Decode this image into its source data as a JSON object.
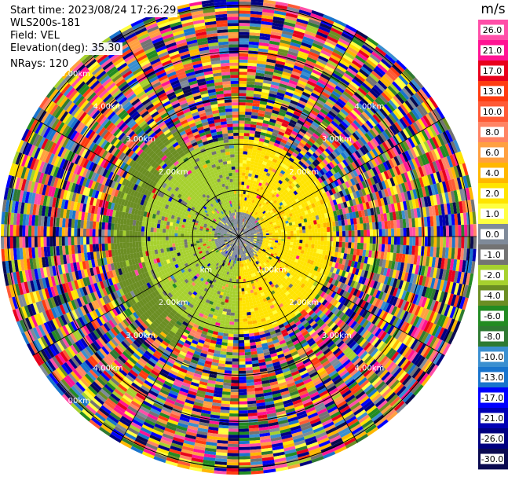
{
  "header": {
    "start_time": "Start time: 2023/08/24 17:26:29",
    "instrument": "WLS200s-181",
    "field": "Field: VEL",
    "elevation": "Elevation(deg): 35.30",
    "nrays": "NRays: 120"
  },
  "chart_data": {
    "type": "heatmap",
    "projection": "polar-ppi",
    "field": "VEL",
    "units": "m/s",
    "nrays": 120,
    "range_rings_km": [
      1.0,
      2.0,
      3.0,
      4.0,
      5.0
    ],
    "ring_label_suffix": "km",
    "ring_labels": [
      "1.00km",
      "2.00km",
      "3.00km",
      "4.00km",
      "5.00km"
    ],
    "visible_ring_labels": [
      {
        "ring": 1.0,
        "quadrant": "lower-left",
        "text": "km"
      },
      {
        "ring": 1.0,
        "quadrant": "lower-right",
        "text": "1.00km"
      },
      {
        "ring": 2.0,
        "quadrant": "upper-left",
        "text": "2.00km"
      },
      {
        "ring": 2.0,
        "quadrant": "upper-right",
        "text": "2.00km"
      },
      {
        "ring": 2.0,
        "quadrant": "lower-left",
        "text": "2.00km"
      },
      {
        "ring": 2.0,
        "quadrant": "lower-right",
        "text": "2.00km"
      },
      {
        "ring": 3.0,
        "quadrant": "upper-left",
        "text": "3.00km"
      },
      {
        "ring": 3.0,
        "quadrant": "upper-right",
        "text": "3.00km"
      },
      {
        "ring": 3.0,
        "quadrant": "lower-left",
        "text": "3.00km"
      },
      {
        "ring": 3.0,
        "quadrant": "lower-right",
        "text": "3.00km"
      },
      {
        "ring": 4.0,
        "quadrant": "upper-left",
        "text": "4.00km"
      },
      {
        "ring": 4.0,
        "quadrant": "upper-right",
        "text": "4.00km"
      },
      {
        "ring": 4.0,
        "quadrant": "lower-left",
        "text": "4.00km"
      },
      {
        "ring": 4.0,
        "quadrant": "lower-right",
        "text": "4.00km"
      },
      {
        "ring": 5.0,
        "quadrant": "upper-left",
        "text": "5.00km"
      },
      {
        "ring": 5.0,
        "quadrant": "lower-left",
        "text": "5.00km"
      }
    ],
    "max_range_km": 5.15,
    "regions": [
      {
        "name": "near-range",
        "range_km": [
          0,
          0.5
        ],
        "value": 0.0
      },
      {
        "name": "north-sector",
        "range_km": [
          0.5,
          2.1
        ],
        "azimuth_deg": [
          270,
          450
        ],
        "value": 2.0
      },
      {
        "name": "south-sector",
        "range_km": [
          0.5,
          2.1
        ],
        "azimuth_deg": [
          90,
          270
        ],
        "value": -2.0
      },
      {
        "name": "south-outer",
        "range_km": [
          1.5,
          2.8
        ],
        "azimuth_deg": [
          120,
          240
        ],
        "value": -4.0
      },
      {
        "name": "far-range",
        "range_km": [
          2.1,
          5.15
        ],
        "value": "noise"
      }
    ],
    "colorbar": {
      "label": "m/s",
      "ticks": [
        26.0,
        21.0,
        17.0,
        13.0,
        10.0,
        8.0,
        6.0,
        4.0,
        2.0,
        1.0,
        0.0,
        -1.0,
        -2.0,
        -4.0,
        -6.0,
        -8.0,
        -10.0,
        -13.0,
        -17.0,
        -21.0,
        -26.0,
        -30.0
      ],
      "tick_labels": [
        "26.0",
        "21.0",
        "17.0",
        "13.0",
        "10.0",
        "8.0",
        "6.0",
        "4.0",
        "2.0",
        "1.0",
        "0.0",
        "-1.0",
        "-2.0",
        "-4.0",
        "-6.0",
        "-8.0",
        "-10.0",
        "-13.0",
        "-17.0",
        "-21.0",
        "-26.0",
        "-30.0"
      ],
      "colors": [
        "#ff4fa8",
        "#ff1493",
        "#e8001c",
        "#ff3b10",
        "#ff5a36",
        "#ff8464",
        "#ffa040",
        "#ffb700",
        "#ffe400",
        "#ffff40",
        "#7f8a99",
        "#737373",
        "#a6d12e",
        "#6b8e23",
        "#228b22",
        "#2e7a32",
        "#3a8fd0",
        "#1874cd",
        "#0000ff",
        "#0000b4",
        "#000080",
        "#0a0a50"
      ]
    }
  }
}
